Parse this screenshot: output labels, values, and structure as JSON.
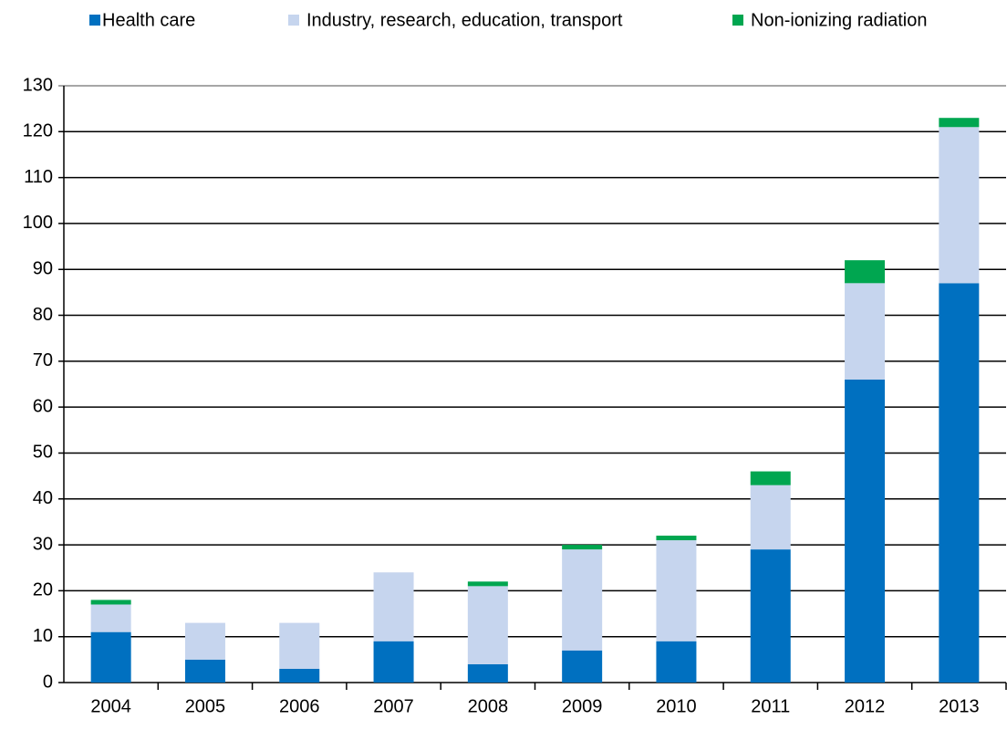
{
  "chart_data": {
    "type": "stacked_bar",
    "categories": [
      "2004",
      "2005",
      "2006",
      "2007",
      "2008",
      "2009",
      "2010",
      "2011",
      "2012",
      "2013"
    ],
    "series": [
      {
        "name": "Health care",
        "color": "#0070c0",
        "values": [
          11,
          5,
          3,
          9,
          4,
          7,
          9,
          29,
          66,
          87
        ]
      },
      {
        "name": "Industry, research, education, transport",
        "color": "#c6d5ee",
        "values": [
          6,
          8,
          10,
          15,
          17,
          22,
          22,
          14,
          21,
          34
        ]
      },
      {
        "name": "Non-ionizing radiation",
        "color": "#00a650",
        "values": [
          1,
          0,
          0,
          0,
          1,
          1,
          1,
          3,
          5,
          2
        ]
      }
    ],
    "ylim": [
      0,
      130
    ],
    "yticks": [
      0,
      10,
      20,
      30,
      40,
      50,
      60,
      70,
      80,
      90,
      100,
      110,
      120,
      130
    ],
    "grid": true
  }
}
